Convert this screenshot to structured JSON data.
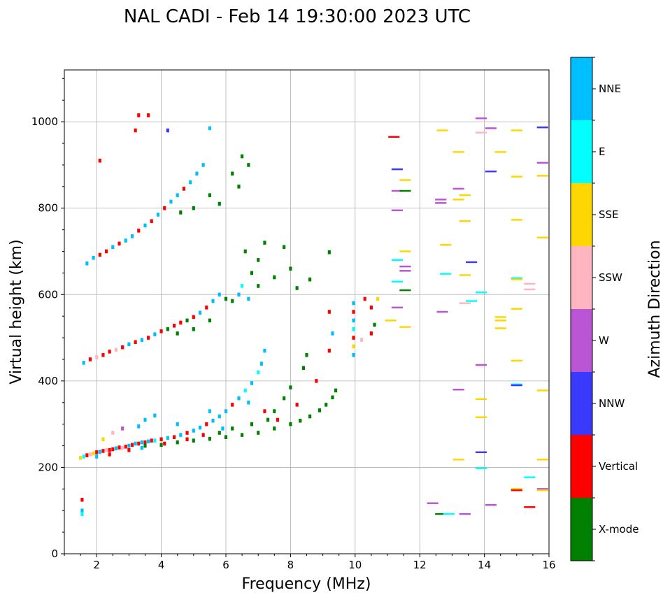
{
  "chart_data": {
    "type": "scatter",
    "title": "NAL CADI - Feb 14 19:30:00 2023 UTC",
    "xlabel": "Frequency (MHz)",
    "ylabel": "Virtual height (km)",
    "xlim": [
      1,
      16
    ],
    "ylim": [
      0,
      1120
    ],
    "xticks": [
      2,
      4,
      6,
      8,
      10,
      12,
      14,
      16
    ],
    "yticks": [
      0,
      200,
      400,
      600,
      800,
      1000
    ],
    "grid": true,
    "colorbar": {
      "label": "Azimuth Direction",
      "categories": [
        "X-mode",
        "Vertical",
        "NNW",
        "W",
        "SSW",
        "SSE",
        "E",
        "NNE"
      ],
      "colors": [
        "#008000",
        "#ff0000",
        "#3a3aff",
        "#ba55d3",
        "#ffb6c1",
        "#ffd700",
        "#00ffff",
        "#00bfff"
      ]
    },
    "points_format": [
      "frequency_MHz",
      "height_km",
      "direction_index"
    ],
    "points": [
      [
        1.5,
        222,
        5
      ],
      [
        1.6,
        225,
        6
      ],
      [
        1.7,
        228,
        1
      ],
      [
        1.8,
        230,
        4
      ],
      [
        1.9,
        232,
        5
      ],
      [
        2.0,
        235,
        1
      ],
      [
        2.1,
        236,
        7
      ],
      [
        2.2,
        238,
        1
      ],
      [
        2.3,
        240,
        4
      ],
      [
        2.4,
        240,
        1
      ],
      [
        2.5,
        242,
        1
      ],
      [
        2.6,
        244,
        7
      ],
      [
        2.7,
        246,
        1
      ],
      [
        2.8,
        245,
        4
      ],
      [
        2.9,
        248,
        1
      ],
      [
        3.0,
        250,
        7
      ],
      [
        3.1,
        252,
        1
      ],
      [
        3.2,
        255,
        7
      ],
      [
        3.3,
        255,
        1
      ],
      [
        3.4,
        258,
        7
      ],
      [
        3.5,
        258,
        1
      ],
      [
        3.6,
        260,
        7
      ],
      [
        3.7,
        262,
        1
      ],
      [
        3.8,
        262,
        6
      ],
      [
        4.0,
        265,
        1
      ],
      [
        4.2,
        268,
        7
      ],
      [
        4.4,
        270,
        1
      ],
      [
        4.6,
        275,
        7
      ],
      [
        4.8,
        280,
        1
      ],
      [
        5.0,
        285,
        7
      ],
      [
        5.2,
        292,
        7
      ],
      [
        5.4,
        300,
        1
      ],
      [
        5.6,
        308,
        7
      ],
      [
        5.8,
        318,
        7
      ],
      [
        6.0,
        330,
        7
      ],
      [
        6.2,
        345,
        1
      ],
      [
        6.4,
        360,
        7
      ],
      [
        6.6,
        378,
        6
      ],
      [
        6.8,
        395,
        7
      ],
      [
        7.0,
        420,
        6
      ],
      [
        7.1,
        440,
        7
      ],
      [
        7.2,
        470,
        7
      ],
      [
        2.5,
        280,
        4
      ],
      [
        2.2,
        265,
        5
      ],
      [
        3.5,
        310,
        7
      ],
      [
        3.8,
        320,
        7
      ],
      [
        4.5,
        300,
        7
      ],
      [
        5.5,
        330,
        7
      ],
      [
        6.7,
        350,
        7
      ],
      [
        2.0,
        225,
        7
      ],
      [
        2.4,
        230,
        1
      ],
      [
        3.0,
        240,
        1
      ],
      [
        3.4,
        245,
        7
      ],
      [
        4.1,
        255,
        1
      ],
      [
        4.8,
        265,
        1
      ],
      [
        5.3,
        275,
        1
      ],
      [
        5.9,
        290,
        7
      ],
      [
        2.8,
        290,
        3
      ],
      [
        3.3,
        295,
        7
      ],
      [
        3.5,
        250,
        0
      ],
      [
        4.0,
        252,
        0
      ],
      [
        4.5,
        258,
        0
      ],
      [
        5.0,
        262,
        0
      ],
      [
        5.5,
        266,
        0
      ],
      [
        6.0,
        270,
        0
      ],
      [
        6.5,
        275,
        0
      ],
      [
        7.0,
        280,
        0
      ],
      [
        7.5,
        290,
        0
      ],
      [
        8.0,
        300,
        0
      ],
      [
        8.3,
        308,
        0
      ],
      [
        8.6,
        318,
        0
      ],
      [
        8.9,
        332,
        0
      ],
      [
        9.1,
        345,
        0
      ],
      [
        9.3,
        362,
        0
      ],
      [
        9.4,
        378,
        0
      ],
      [
        7.5,
        330,
        0
      ],
      [
        7.8,
        360,
        0
      ],
      [
        8.0,
        385,
        0
      ],
      [
        8.4,
        430,
        0
      ],
      [
        8.5,
        460,
        0
      ],
      [
        7.2,
        330,
        1
      ],
      [
        7.6,
        310,
        1
      ],
      [
        8.2,
        345,
        1
      ],
      [
        8.8,
        400,
        1
      ],
      [
        9.2,
        560,
        1
      ],
      [
        9.2,
        470,
        1
      ],
      [
        9.3,
        510,
        7
      ],
      [
        6.2,
        290,
        0
      ],
      [
        6.8,
        300,
        0
      ],
      [
        7.3,
        310,
        0
      ],
      [
        5.8,
        280,
        0
      ],
      [
        1.6,
        442,
        7
      ],
      [
        1.8,
        450,
        1
      ],
      [
        2.0,
        455,
        4
      ],
      [
        2.2,
        460,
        1
      ],
      [
        2.4,
        468,
        1
      ],
      [
        2.6,
        472,
        4
      ],
      [
        2.8,
        478,
        1
      ],
      [
        3.0,
        485,
        7
      ],
      [
        3.2,
        490,
        1
      ],
      [
        3.4,
        495,
        7
      ],
      [
        3.6,
        500,
        1
      ],
      [
        3.8,
        508,
        7
      ],
      [
        4.0,
        515,
        1
      ],
      [
        4.2,
        520,
        0
      ],
      [
        4.4,
        528,
        1
      ],
      [
        4.6,
        535,
        1
      ],
      [
        4.8,
        540,
        0
      ],
      [
        5.0,
        548,
        1
      ],
      [
        5.2,
        558,
        7
      ],
      [
        5.4,
        570,
        1
      ],
      [
        5.6,
        585,
        7
      ],
      [
        5.8,
        600,
        7
      ],
      [
        6.0,
        590,
        0
      ],
      [
        6.2,
        585,
        0
      ],
      [
        6.4,
        600,
        7
      ],
      [
        6.5,
        620,
        6
      ],
      [
        6.7,
        590,
        7
      ],
      [
        5.0,
        520,
        0
      ],
      [
        4.5,
        510,
        0
      ],
      [
        5.5,
        540,
        0
      ],
      [
        6.8,
        650,
        0
      ],
      [
        7.0,
        680,
        0
      ],
      [
        7.2,
        720,
        0
      ],
      [
        6.6,
        700,
        0
      ],
      [
        7.0,
        620,
        0
      ],
      [
        7.5,
        640,
        0
      ],
      [
        8.0,
        660,
        0
      ],
      [
        8.2,
        615,
        0
      ],
      [
        8.6,
        635,
        0
      ],
      [
        9.2,
        698,
        0
      ],
      [
        7.8,
        710,
        0
      ],
      [
        6.5,
        920,
        0
      ],
      [
        6.7,
        900,
        0
      ],
      [
        6.2,
        880,
        0
      ],
      [
        6.4,
        850,
        0
      ],
      [
        1.7,
        672,
        7
      ],
      [
        1.9,
        685,
        7
      ],
      [
        2.1,
        692,
        1
      ],
      [
        2.3,
        700,
        1
      ],
      [
        2.5,
        710,
        7
      ],
      [
        2.7,
        718,
        1
      ],
      [
        2.9,
        725,
        7
      ],
      [
        3.1,
        735,
        7
      ],
      [
        3.3,
        748,
        1
      ],
      [
        3.5,
        760,
        7
      ],
      [
        3.7,
        770,
        1
      ],
      [
        3.9,
        785,
        7
      ],
      [
        4.1,
        800,
        1
      ],
      [
        4.3,
        815,
        7
      ],
      [
        4.5,
        830,
        7
      ],
      [
        4.7,
        845,
        1
      ],
      [
        4.9,
        860,
        7
      ],
      [
        5.1,
        880,
        7
      ],
      [
        5.3,
        900,
        7
      ],
      [
        5.5,
        830,
        0
      ],
      [
        5.0,
        800,
        0
      ],
      [
        5.8,
        810,
        0
      ],
      [
        4.6,
        790,
        0
      ],
      [
        3.3,
        1015,
        1
      ],
      [
        3.6,
        1015,
        1
      ],
      [
        4.2,
        980,
        2
      ],
      [
        5.5,
        985,
        7
      ],
      [
        2.1,
        910,
        1
      ],
      [
        3.2,
        980,
        1
      ],
      [
        9.95,
        580,
        7
      ],
      [
        9.95,
        560,
        1
      ],
      [
        9.95,
        540,
        7
      ],
      [
        9.95,
        520,
        6
      ],
      [
        9.95,
        500,
        1
      ],
      [
        9.95,
        480,
        5
      ],
      [
        9.95,
        460,
        7
      ],
      [
        10.3,
        590,
        1
      ],
      [
        10.5,
        570,
        1
      ],
      [
        10.6,
        530,
        0
      ],
      [
        10.5,
        510,
        1
      ],
      [
        10.7,
        590,
        5
      ],
      [
        10.2,
        495,
        4
      ],
      [
        11.1,
        540,
        5
      ],
      [
        11.2,
        965,
        1
      ],
      [
        1.55,
        100,
        7
      ],
      [
        1.55,
        92,
        6
      ],
      [
        1.55,
        125,
        1
      ],
      [
        11.3,
        890,
        2
      ],
      [
        11.3,
        840,
        3
      ],
      [
        11.3,
        795,
        3
      ],
      [
        11.3,
        680,
        6
      ],
      [
        11.3,
        630,
        6
      ],
      [
        11.3,
        570,
        3
      ],
      [
        11.55,
        865,
        5
      ],
      [
        11.55,
        840,
        0
      ],
      [
        11.55,
        700,
        5
      ],
      [
        11.55,
        665,
        3
      ],
      [
        11.55,
        655,
        3
      ],
      [
        11.55,
        610,
        0
      ],
      [
        11.55,
        525,
        5
      ],
      [
        12.7,
        980,
        5
      ],
      [
        12.65,
        820,
        3
      ],
      [
        12.65,
        812,
        3
      ],
      [
        12.7,
        560,
        3
      ],
      [
        12.8,
        715,
        5
      ],
      [
        12.8,
        648,
        6
      ],
      [
        12.4,
        117,
        3
      ],
      [
        12.65,
        92,
        0
      ],
      [
        12.9,
        92,
        6
      ],
      [
        13.2,
        930,
        5
      ],
      [
        13.2,
        845,
        3
      ],
      [
        13.2,
        820,
        5
      ],
      [
        13.2,
        380,
        3
      ],
      [
        13.2,
        218,
        5
      ],
      [
        13.4,
        830,
        5
      ],
      [
        13.4,
        770,
        5
      ],
      [
        13.4,
        645,
        5
      ],
      [
        13.4,
        580,
        4
      ],
      [
        13.4,
        92,
        3
      ],
      [
        13.6,
        675,
        2
      ],
      [
        13.6,
        585,
        6
      ],
      [
        13.9,
        1008,
        3
      ],
      [
        13.9,
        975,
        4
      ],
      [
        13.9,
        605,
        6
      ],
      [
        13.9,
        437,
        3
      ],
      [
        13.9,
        358,
        5
      ],
      [
        13.9,
        316,
        5
      ],
      [
        13.9,
        235,
        2
      ],
      [
        13.9,
        198,
        6
      ],
      [
        14.2,
        985,
        3
      ],
      [
        14.2,
        885,
        2
      ],
      [
        14.2,
        113,
        3
      ],
      [
        14.5,
        930,
        5
      ],
      [
        14.5,
        548,
        5
      ],
      [
        14.5,
        540,
        5
      ],
      [
        14.5,
        522,
        5
      ],
      [
        15.0,
        980,
        5
      ],
      [
        15.0,
        873,
        5
      ],
      [
        15.0,
        773,
        5
      ],
      [
        15.0,
        638,
        6
      ],
      [
        15.0,
        635,
        5
      ],
      [
        15.0,
        567,
        5
      ],
      [
        15.0,
        447,
        5
      ],
      [
        15.0,
        392,
        6
      ],
      [
        15.0,
        390,
        2
      ],
      [
        15.0,
        150,
        5
      ],
      [
        15.0,
        147,
        1
      ],
      [
        15.4,
        625,
        4
      ],
      [
        15.4,
        612,
        4
      ],
      [
        15.4,
        177,
        6
      ],
      [
        15.4,
        108,
        1
      ],
      [
        15.8,
        987,
        2
      ],
      [
        15.8,
        905,
        3
      ],
      [
        15.8,
        875,
        5
      ],
      [
        15.8,
        732,
        5
      ],
      [
        15.8,
        378,
        5
      ],
      [
        15.8,
        218,
        5
      ],
      [
        15.8,
        150,
        3
      ],
      [
        15.8,
        147,
        5
      ]
    ]
  }
}
